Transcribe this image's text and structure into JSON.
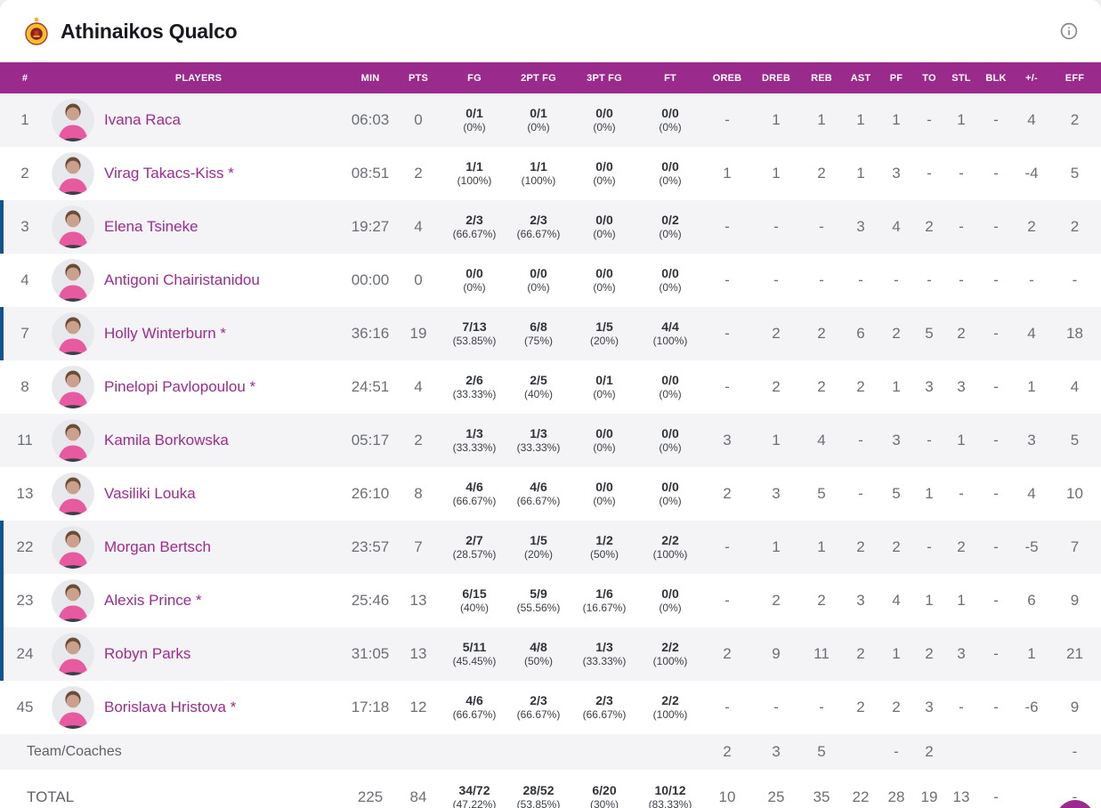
{
  "header": {
    "team_name": "Athinaikos Qualco",
    "logo_icon": "athinaikos-crest",
    "info_icon": "info-icon"
  },
  "colors": {
    "brand_purple": "#9A2B8D",
    "player_name": "#A02A90",
    "on_court_blue": "#15538C",
    "row_alt": "#F4F4F6",
    "text_dark": "#2F3338",
    "text_gray": "#6B6F75",
    "label_gray": "#5E6268"
  },
  "table": {
    "columns": [
      "#",
      "PLAYERS",
      "MIN",
      "PTS",
      "FG",
      "2PT FG",
      "3PT FG",
      "FT",
      "OREB",
      "DREB",
      "REB",
      "AST",
      "PF",
      "TO",
      "STL",
      "BLK",
      "+/-",
      "EFF"
    ],
    "players": [
      {
        "number": "1",
        "name": "Ivana Raca",
        "on_court": false,
        "min": "06:03",
        "pts": "0",
        "fg": "0/1",
        "fg_pct": "(0%)",
        "fg2": "0/1",
        "fg2_pct": "(0%)",
        "fg3": "0/0",
        "fg3_pct": "(0%)",
        "ft": "0/0",
        "ft_pct": "(0%)",
        "oreb": "-",
        "dreb": "1",
        "reb": "1",
        "ast": "1",
        "pf": "1",
        "to": "-",
        "stl": "1",
        "blk": "-",
        "pm": "4",
        "eff": "2"
      },
      {
        "number": "2",
        "name": "Virag Takacs-Kiss *",
        "on_court": false,
        "min": "08:51",
        "pts": "2",
        "fg": "1/1",
        "fg_pct": "(100%)",
        "fg2": "1/1",
        "fg2_pct": "(100%)",
        "fg3": "0/0",
        "fg3_pct": "(0%)",
        "ft": "0/0",
        "ft_pct": "(0%)",
        "oreb": "1",
        "dreb": "1",
        "reb": "2",
        "ast": "1",
        "pf": "3",
        "to": "-",
        "stl": "-",
        "blk": "-",
        "pm": "-4",
        "eff": "5"
      },
      {
        "number": "3",
        "name": "Elena Tsineke",
        "on_court": true,
        "min": "19:27",
        "pts": "4",
        "fg": "2/3",
        "fg_pct": "(66.67%)",
        "fg2": "2/3",
        "fg2_pct": "(66.67%)",
        "fg3": "0/0",
        "fg3_pct": "(0%)",
        "ft": "0/2",
        "ft_pct": "(0%)",
        "oreb": "-",
        "dreb": "-",
        "reb": "-",
        "ast": "3",
        "pf": "4",
        "to": "2",
        "stl": "-",
        "blk": "-",
        "pm": "2",
        "eff": "2"
      },
      {
        "number": "4",
        "name": "Antigoni Chairistanidou",
        "on_court": false,
        "min": "00:00",
        "pts": "0",
        "fg": "0/0",
        "fg_pct": "(0%)",
        "fg2": "0/0",
        "fg2_pct": "(0%)",
        "fg3": "0/0",
        "fg3_pct": "(0%)",
        "ft": "0/0",
        "ft_pct": "(0%)",
        "oreb": "-",
        "dreb": "-",
        "reb": "-",
        "ast": "-",
        "pf": "-",
        "to": "-",
        "stl": "-",
        "blk": "-",
        "pm": "-",
        "eff": "-"
      },
      {
        "number": "7",
        "name": "Holly Winterburn *",
        "on_court": true,
        "min": "36:16",
        "pts": "19",
        "fg": "7/13",
        "fg_pct": "(53.85%)",
        "fg2": "6/8",
        "fg2_pct": "(75%)",
        "fg3": "1/5",
        "fg3_pct": "(20%)",
        "ft": "4/4",
        "ft_pct": "(100%)",
        "oreb": "-",
        "dreb": "2",
        "reb": "2",
        "ast": "6",
        "pf": "2",
        "to": "5",
        "stl": "2",
        "blk": "-",
        "pm": "4",
        "eff": "18"
      },
      {
        "number": "8",
        "name": "Pinelopi Pavlopoulou *",
        "on_court": false,
        "min": "24:51",
        "pts": "4",
        "fg": "2/6",
        "fg_pct": "(33.33%)",
        "fg2": "2/5",
        "fg2_pct": "(40%)",
        "fg3": "0/1",
        "fg3_pct": "(0%)",
        "ft": "0/0",
        "ft_pct": "(0%)",
        "oreb": "-",
        "dreb": "2",
        "reb": "2",
        "ast": "2",
        "pf": "1",
        "to": "3",
        "stl": "3",
        "blk": "-",
        "pm": "1",
        "eff": "4"
      },
      {
        "number": "11",
        "name": "Kamila Borkowska",
        "on_court": false,
        "min": "05:17",
        "pts": "2",
        "fg": "1/3",
        "fg_pct": "(33.33%)",
        "fg2": "1/3",
        "fg2_pct": "(33.33%)",
        "fg3": "0/0",
        "fg3_pct": "(0%)",
        "ft": "0/0",
        "ft_pct": "(0%)",
        "oreb": "3",
        "dreb": "1",
        "reb": "4",
        "ast": "-",
        "pf": "3",
        "to": "-",
        "stl": "1",
        "blk": "-",
        "pm": "3",
        "eff": "5"
      },
      {
        "number": "13",
        "name": "Vasiliki Louka",
        "on_court": false,
        "min": "26:10",
        "pts": "8",
        "fg": "4/6",
        "fg_pct": "(66.67%)",
        "fg2": "4/6",
        "fg2_pct": "(66.67%)",
        "fg3": "0/0",
        "fg3_pct": "(0%)",
        "ft": "0/0",
        "ft_pct": "(0%)",
        "oreb": "2",
        "dreb": "3",
        "reb": "5",
        "ast": "-",
        "pf": "5",
        "to": "1",
        "stl": "-",
        "blk": "-",
        "pm": "4",
        "eff": "10"
      },
      {
        "number": "22",
        "name": "Morgan Bertsch",
        "on_court": true,
        "min": "23:57",
        "pts": "7",
        "fg": "2/7",
        "fg_pct": "(28.57%)",
        "fg2": "1/5",
        "fg2_pct": "(20%)",
        "fg3": "1/2",
        "fg3_pct": "(50%)",
        "ft": "2/2",
        "ft_pct": "(100%)",
        "oreb": "-",
        "dreb": "1",
        "reb": "1",
        "ast": "2",
        "pf": "2",
        "to": "-",
        "stl": "2",
        "blk": "-",
        "pm": "-5",
        "eff": "7"
      },
      {
        "number": "23",
        "name": "Alexis Prince *",
        "on_court": true,
        "min": "25:46",
        "pts": "13",
        "fg": "6/15",
        "fg_pct": "(40%)",
        "fg2": "5/9",
        "fg2_pct": "(55.56%)",
        "fg3": "1/6",
        "fg3_pct": "(16.67%)",
        "ft": "0/0",
        "ft_pct": "(0%)",
        "oreb": "-",
        "dreb": "2",
        "reb": "2",
        "ast": "3",
        "pf": "4",
        "to": "1",
        "stl": "1",
        "blk": "-",
        "pm": "6",
        "eff": "9"
      },
      {
        "number": "24",
        "name": "Robyn Parks",
        "on_court": true,
        "min": "31:05",
        "pts": "13",
        "fg": "5/11",
        "fg_pct": "(45.45%)",
        "fg2": "4/8",
        "fg2_pct": "(50%)",
        "fg3": "1/3",
        "fg3_pct": "(33.33%)",
        "ft": "2/2",
        "ft_pct": "(100%)",
        "oreb": "2",
        "dreb": "9",
        "reb": "11",
        "ast": "2",
        "pf": "1",
        "to": "2",
        "stl": "3",
        "blk": "-",
        "pm": "1",
        "eff": "21"
      },
      {
        "number": "45",
        "name": "Borislava Hristova *",
        "on_court": false,
        "min": "17:18",
        "pts": "12",
        "fg": "4/6",
        "fg_pct": "(66.67%)",
        "fg2": "2/3",
        "fg2_pct": "(66.67%)",
        "fg3": "2/3",
        "fg3_pct": "(66.67%)",
        "ft": "2/2",
        "ft_pct": "(100%)",
        "oreb": "-",
        "dreb": "-",
        "reb": "-",
        "ast": "2",
        "pf": "2",
        "to": "3",
        "stl": "-",
        "blk": "-",
        "pm": "-6",
        "eff": "9"
      }
    ],
    "team_row": {
      "label": "Team/Coaches",
      "oreb": "2",
      "dreb": "3",
      "reb": "5",
      "ast": "",
      "pf": "-",
      "to": "2",
      "stl": "",
      "blk": "",
      "pm": "",
      "eff": "-"
    },
    "total_row": {
      "label": "TOTAL",
      "min": "225",
      "pts": "84",
      "fg": "34/72",
      "fg_pct": "(47.22%)",
      "fg2": "28/52",
      "fg2_pct": "(53.85%)",
      "fg3": "6/20",
      "fg3_pct": "(30%)",
      "ft": "10/12",
      "ft_pct": "(83.33%)",
      "oreb": "10",
      "dreb": "25",
      "reb": "35",
      "ast": "22",
      "pf": "28",
      "to": "19",
      "stl": "13",
      "blk": "-",
      "pm": "",
      "eff": "-"
    }
  }
}
